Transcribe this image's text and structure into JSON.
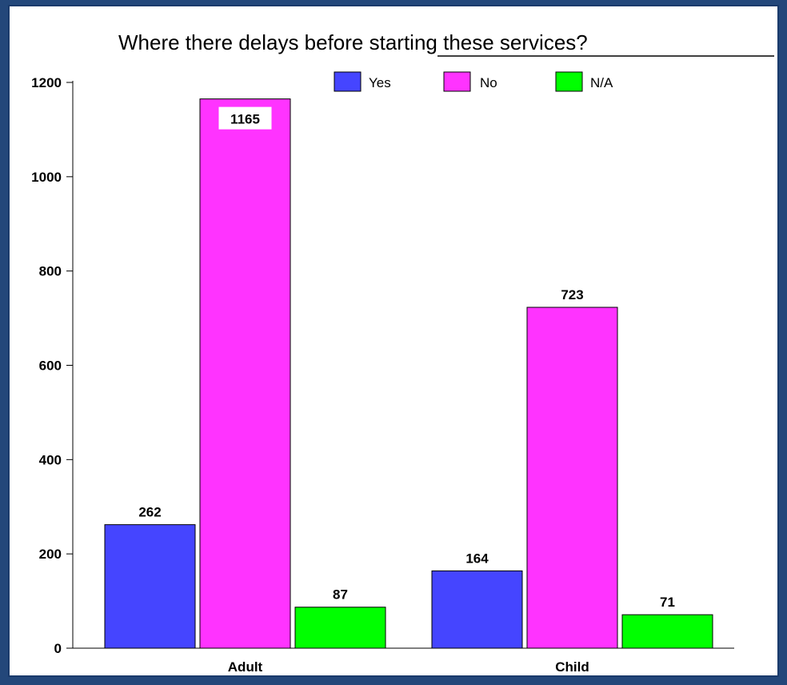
{
  "chart_data": {
    "type": "bar",
    "title": "Where there delays before starting these services?",
    "categories": [
      "Adult",
      "Child"
    ],
    "series": [
      {
        "name": "Yes",
        "values": [
          262,
          164
        ],
        "color": "#4545ff"
      },
      {
        "name": "No",
        "values": [
          1165,
          723
        ],
        "color": "#ff33ff"
      },
      {
        "name": "N/A",
        "values": [
          87,
          71
        ],
        "color": "#00ff00"
      }
    ],
    "xlabel": "",
    "ylabel": "",
    "ylim": [
      0,
      1200
    ],
    "yticks": [
      0,
      200,
      400,
      600,
      800,
      1000,
      1200
    ],
    "grid": false,
    "legend_position": "top-right",
    "data_labels": true
  },
  "colors": {
    "background_border": "#23477a",
    "plot_background": "#ffffff"
  }
}
